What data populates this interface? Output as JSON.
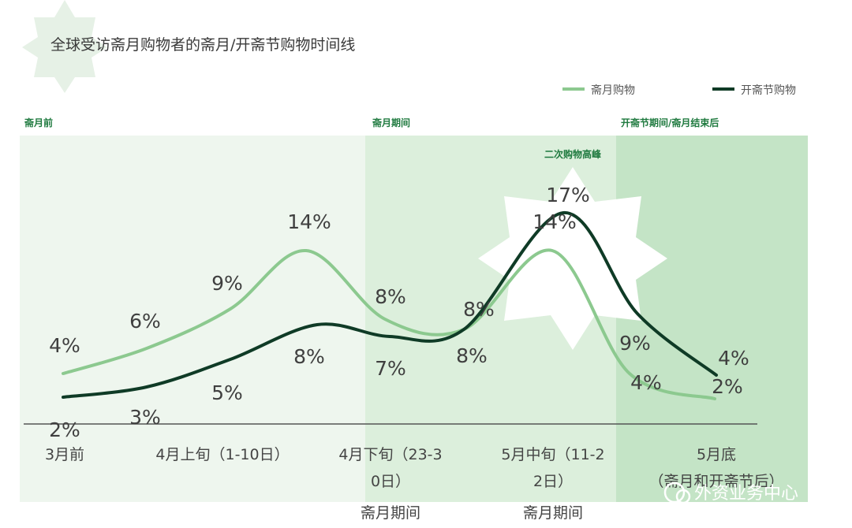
{
  "chart_data": {
    "type": "line",
    "title": "全球受访斋月购物者的斋月/开斋节购物时间线",
    "categories": [
      "3月前",
      "4月上旬（1-10日）",
      "4月下旬（23-30日）",
      "5月中旬（11-22日）",
      "5月底（斋月和开斋节后）"
    ],
    "category_sublabels": [
      "",
      "",
      "斋月期间",
      "斋月期间",
      ""
    ],
    "series": [
      {
        "name": "斋月购物",
        "color": "#8cc98f",
        "labels": [
          "4%",
          "6%",
          "9%",
          "14%",
          "8%",
          "8%",
          "14%",
          "4%",
          "2%"
        ]
      },
      {
        "name": "开斋节购物",
        "color": "#0f3b26",
        "labels": [
          "2%",
          "3%",
          "5%",
          "8%",
          "7%",
          "8%",
          "17%",
          "9%",
          "4%"
        ]
      }
    ],
    "phases": [
      {
        "label": "斋月前",
        "color": "#eef6ee"
      },
      {
        "label": "斋月期间",
        "color": "#dcefdc"
      },
      {
        "label": "开斋节期间/斋月结束后",
        "color": "#c4e4c6"
      }
    ],
    "annotation": "二次购物高峰",
    "legend_position": "top-right"
  },
  "watermark": "外资业务中心"
}
